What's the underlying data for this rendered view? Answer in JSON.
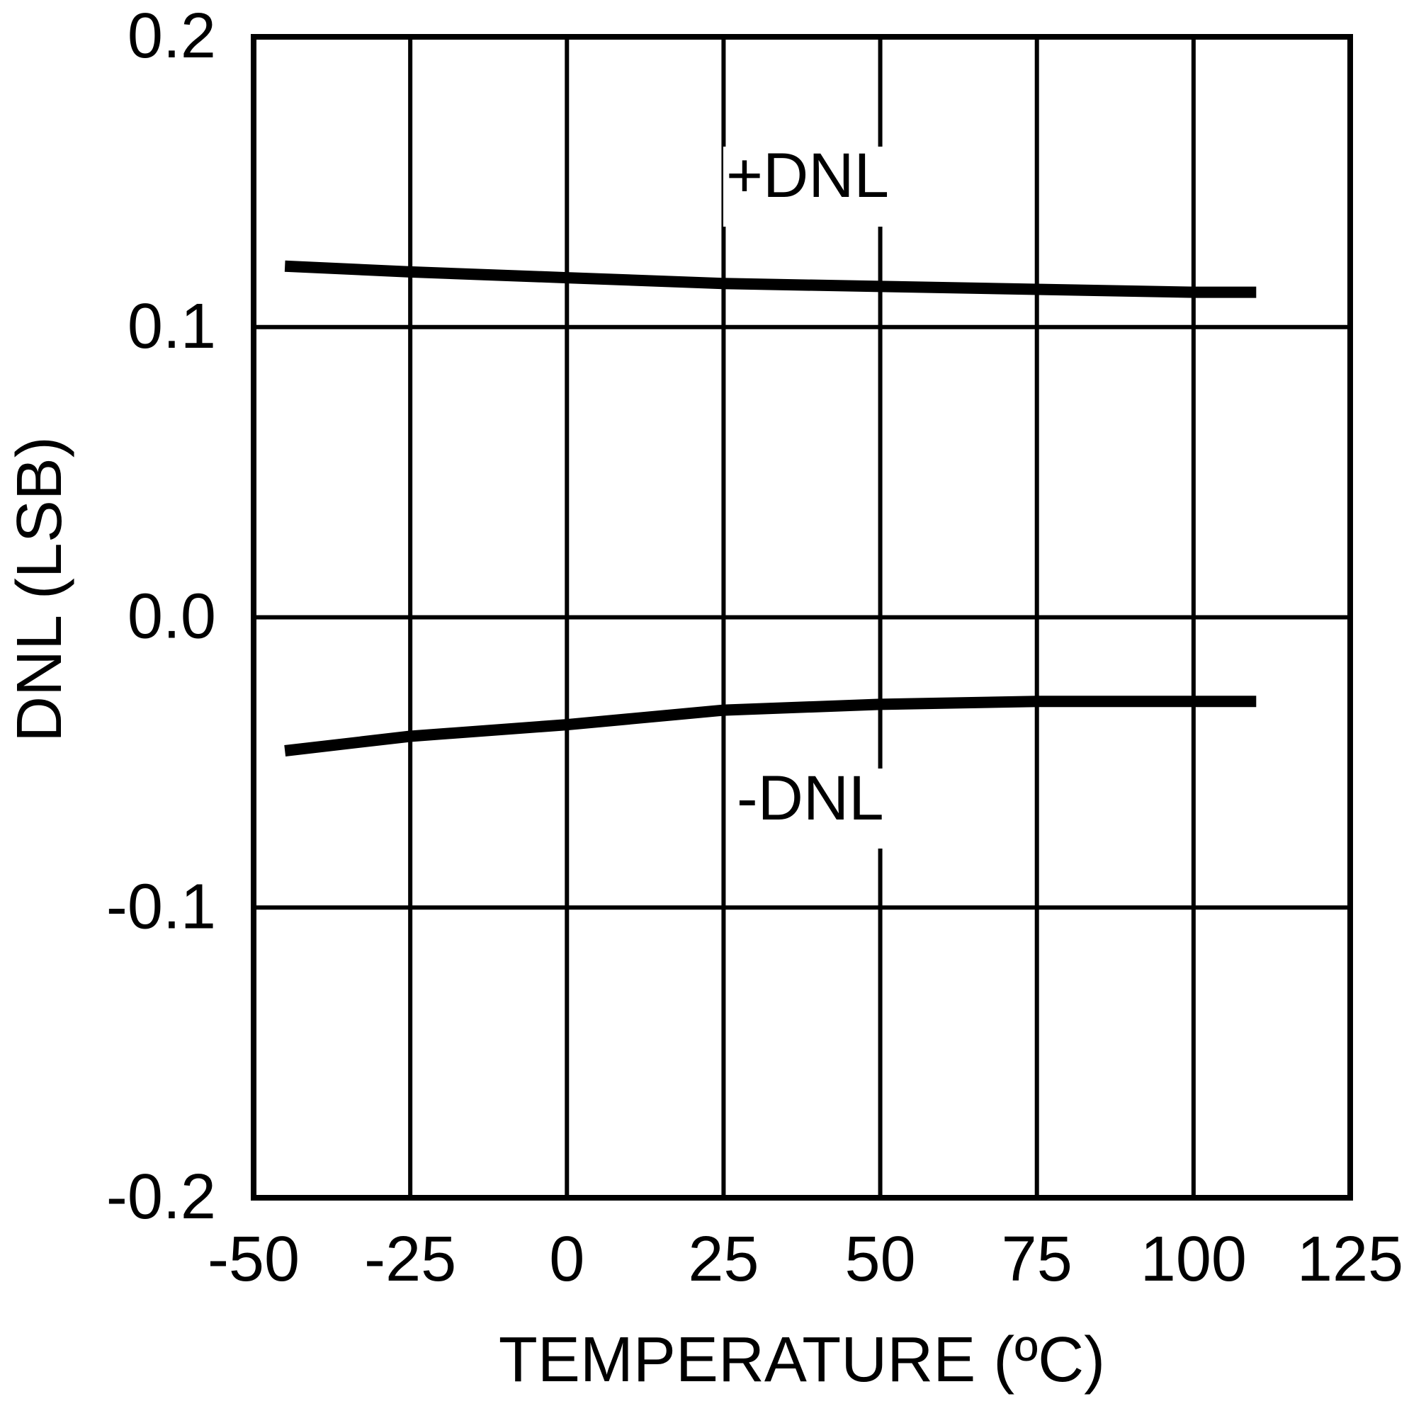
{
  "chart_data": {
    "type": "line",
    "title": "",
    "xlabel": "TEMPERATURE (ºC)",
    "ylabel": "DNL (LSB)",
    "xlim": [
      -50,
      125
    ],
    "ylim": [
      -0.2,
      0.2
    ],
    "grid": true,
    "legend": "none (series labeled inline)",
    "x_ticks": [
      "-50",
      "-25",
      "0",
      "25",
      "50",
      "75",
      "100",
      "125"
    ],
    "y_ticks": [
      "0.2",
      "0.1",
      "0.0",
      "-0.1",
      "-0.2"
    ],
    "x": [
      -45,
      -25,
      0,
      25,
      50,
      75,
      100,
      110
    ],
    "series": [
      {
        "name": "+DNL",
        "values": [
          0.121,
          0.119,
          0.117,
          0.115,
          0.114,
          0.113,
          0.112,
          0.112
        ]
      },
      {
        "name": "-DNL",
        "values": [
          -0.046,
          -0.041,
          -0.037,
          -0.032,
          -0.03,
          -0.029,
          -0.029,
          -0.029
        ]
      }
    ],
    "annotations": [
      {
        "text": "+DNL",
        "x": 37,
        "y": 0.147
      },
      {
        "text": "-DNL",
        "x": 37,
        "y": -0.065
      }
    ]
  },
  "labels": {
    "xlabel": "TEMPERATURE (ºC)",
    "ylabel": "DNL (LSB)",
    "pos_series": "+DNL",
    "neg_series": "-DNL"
  }
}
